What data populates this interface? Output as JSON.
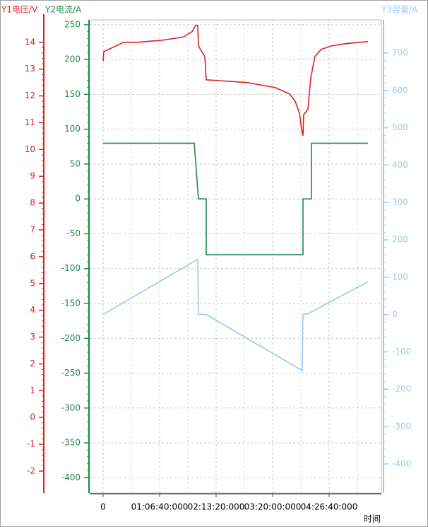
{
  "chart_data": {
    "type": "line",
    "y_label": "Y1电压/V",
    "y2_label": "Y2电流/A",
    "y3_label": "Y3容量/A",
    "x_label": "时间",
    "xlim": [
      -950,
      19700
    ],
    "xticks": [
      0,
      {
        "value": 4000,
        "label": "01:06:40:000"
      },
      {
        "value": 8000,
        "label": "02:13:20:000"
      },
      {
        "value": 12000,
        "label": "03:20:00:000"
      },
      {
        "value": 16000,
        "label": "04:26:40:000"
      }
    ],
    "ylim": [
      -2.82,
      14.84
    ],
    "yticks": [
      -2,
      -1,
      0,
      1,
      2,
      3,
      4,
      5,
      6,
      7,
      8,
      9,
      10,
      11,
      12,
      13,
      14
    ],
    "y2lim": [
      -422,
      257
    ],
    "y2ticks": [
      -400,
      -350,
      -300,
      -250,
      -200,
      -150,
      -100,
      -50,
      0,
      50,
      100,
      150,
      200,
      250
    ],
    "y3lim": [
      -478,
      789
    ],
    "y3ticks": [
      -400,
      -300,
      -200,
      -100,
      0,
      100,
      200,
      300,
      400,
      500,
      600,
      700
    ],
    "grid": true,
    "series": [
      {
        "axis": "y",
        "color": "#e0201e",
        "x": [
          0,
          50,
          1450,
          2400,
          4200,
          5700,
          6300,
          6550,
          6700,
          6750,
          6950,
          7200,
          7300,
          8200,
          10200,
          12200,
          13200,
          13600,
          13900,
          14050,
          14150,
          14200,
          14500,
          14700,
          15000,
          15450,
          16200,
          17200,
          18750
        ],
        "values": [
          13.3,
          13.65,
          14.0,
          14.0,
          14.08,
          14.2,
          14.4,
          14.63,
          14.63,
          13.87,
          13.68,
          13.47,
          12.6,
          12.57,
          12.5,
          12.31,
          12.07,
          11.8,
          11.36,
          10.75,
          10.52,
          11.3,
          11.5,
          12.68,
          13.47,
          13.74,
          13.87,
          13.95,
          14.03
        ]
      },
      {
        "axis": "y2",
        "color": "#1e8a4a",
        "x": [
          0,
          6450,
          6750,
          7300,
          7300,
          14150,
          14150,
          14750,
          14750,
          18750
        ],
        "values": [
          80,
          80,
          0,
          0,
          -80,
          -80,
          0,
          0,
          80,
          80
        ]
      },
      {
        "axis": "y3",
        "color": "#9cc8f0",
        "x": [
          0,
          6700,
          6750,
          7300,
          14100,
          14150,
          14500,
          18750
        ],
        "values": [
          0,
          148,
          0,
          0,
          -150,
          0,
          2,
          88
        ]
      }
    ]
  }
}
